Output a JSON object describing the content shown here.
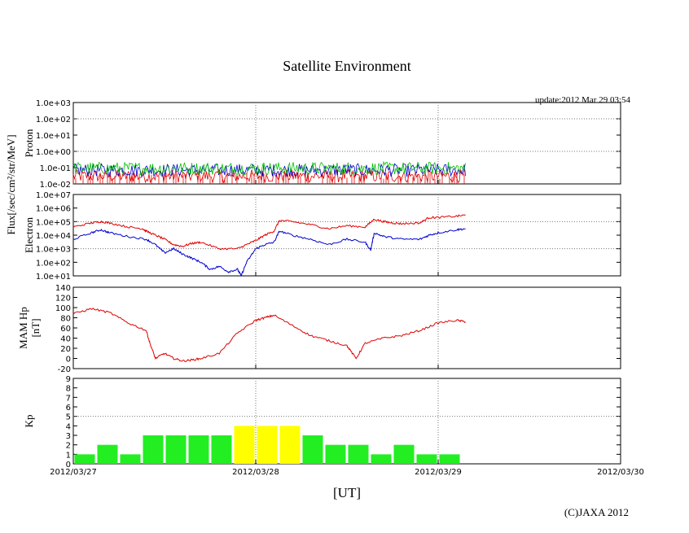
{
  "title": "Satellite Environment",
  "update": "update:2012 Mar 29 03:54",
  "copyright": "(C)JAXA 2012",
  "xlabel": "[UT]",
  "shared_ylabel": "Flux[/sec/cm²/str/MeV]",
  "x_ticks": [
    "2012/03/27",
    "2012/03/28",
    "2012/03/29",
    "2012/03/30"
  ],
  "colors": {
    "red": "#e00000",
    "blue": "#0000cc",
    "green": "#00c000",
    "kp_green": "#22ee22",
    "kp_yellow": "#ffff00"
  },
  "chart_data": [
    {
      "type": "line",
      "name": "proton",
      "ylabel": "Proton",
      "yscale": "log",
      "ylim": [
        0.01,
        1000
      ],
      "y_ticks": [
        "1.0e-02",
        "1.0e-01",
        "1.0e+00",
        "1.0e+01",
        "1.0e+02",
        "1.0e+03"
      ],
      "xlim": [
        0,
        3
      ],
      "note": "noisy fluxes near 0.1, three channels",
      "series": [
        {
          "color": "red",
          "x": [
            0,
            2.15
          ],
          "level": 0.03
        },
        {
          "color": "blue",
          "x": [
            0,
            2.15
          ],
          "level": 0.07
        },
        {
          "color": "green",
          "x": [
            0,
            2.15
          ],
          "level": 0.09
        }
      ]
    },
    {
      "type": "line",
      "name": "electron",
      "ylabel": "Electron",
      "yscale": "log",
      "ylim": [
        10,
        10000000
      ],
      "y_ticks": [
        "1.0e+01",
        "1.0e+02",
        "1.0e+03",
        "1.0e+04",
        "1.0e+05",
        "1.0e+06",
        "1.0e+07"
      ],
      "xlim": [
        0,
        3
      ],
      "series": [
        {
          "color": "red",
          "x": [
            0,
            0.1,
            0.15,
            0.2,
            0.3,
            0.38,
            0.4,
            0.45,
            0.5,
            0.55,
            0.6,
            0.65,
            0.7,
            0.8,
            0.9,
            0.95,
            1.0,
            1.05,
            1.1,
            1.13,
            1.2,
            1.3,
            1.4,
            1.5,
            1.6,
            1.65,
            1.7,
            1.75,
            1.8,
            1.9,
            1.95,
            2.0,
            2.1,
            2.15
          ],
          "y": [
            40000,
            80000,
            100000,
            80000,
            40000,
            30000,
            20000,
            10000,
            5000,
            2000,
            1500,
            2500,
            3000,
            1000,
            1000,
            2000,
            4000,
            10000,
            20000,
            120000,
            100000,
            60000,
            30000,
            50000,
            40000,
            150000,
            100000,
            80000,
            70000,
            80000,
            200000,
            200000,
            250000,
            300000
          ]
        },
        {
          "color": "blue",
          "x": [
            0,
            0.1,
            0.15,
            0.2,
            0.3,
            0.4,
            0.45,
            0.5,
            0.55,
            0.6,
            0.65,
            0.7,
            0.75,
            0.8,
            0.85,
            0.9,
            0.92,
            0.95,
            1.0,
            1.05,
            1.1,
            1.13,
            1.2,
            1.3,
            1.4,
            1.5,
            1.6,
            1.63,
            1.65,
            1.7,
            1.8,
            1.9,
            1.95,
            2.0,
            2.1,
            2.15
          ],
          "y": [
            5000,
            15000,
            25000,
            15000,
            8000,
            5000,
            2000,
            500,
            1000,
            400,
            200,
            100,
            30,
            50,
            20,
            30,
            10,
            100,
            1000,
            2000,
            3000,
            20000,
            10000,
            5000,
            2000,
            5000,
            3000,
            800,
            15000,
            8000,
            5000,
            5000,
            10000,
            15000,
            25000,
            30000
          ]
        }
      ]
    },
    {
      "type": "line",
      "name": "mam-hp",
      "ylabel": "MAM Hp\n[nT]",
      "ylim": [
        -20,
        140
      ],
      "y_ticks": [
        "-20",
        "0",
        "20",
        "40",
        "60",
        "80",
        "100",
        "120",
        "140"
      ],
      "xlim": [
        0,
        3
      ],
      "series": [
        {
          "color": "red",
          "x": [
            0,
            0.1,
            0.2,
            0.3,
            0.4,
            0.42,
            0.45,
            0.5,
            0.55,
            0.6,
            0.65,
            0.7,
            0.8,
            0.9,
            1.0,
            1.05,
            1.1,
            1.2,
            1.3,
            1.4,
            1.5,
            1.55,
            1.6,
            1.7,
            1.8,
            1.9,
            2.0,
            2.1,
            2.15
          ],
          "y": [
            88,
            98,
            90,
            70,
            55,
            30,
            0,
            10,
            0,
            -5,
            -3,
            0,
            10,
            50,
            75,
            80,
            85,
            65,
            45,
            35,
            25,
            0,
            30,
            40,
            45,
            55,
            70,
            75,
            72
          ]
        }
      ]
    },
    {
      "type": "bar",
      "name": "kp",
      "ylabel": "Kp",
      "ylim": [
        0,
        9
      ],
      "y_ticks": [
        "0",
        "1",
        "2",
        "3",
        "4",
        "5",
        "6",
        "7",
        "8",
        "9"
      ],
      "xlim": [
        0,
        3
      ],
      "bar_width_days": 0.125,
      "threshold": 5,
      "values": [
        1,
        2,
        1,
        3,
        3,
        3,
        3,
        4,
        4,
        4,
        3,
        2,
        2,
        1,
        2,
        1,
        1
      ],
      "colors": [
        "kp_green",
        "kp_green",
        "kp_green",
        "kp_green",
        "kp_green",
        "kp_green",
        "kp_green",
        "kp_yellow",
        "kp_yellow",
        "kp_yellow",
        "kp_green",
        "kp_green",
        "kp_green",
        "kp_green",
        "kp_green",
        "kp_green",
        "kp_green"
      ]
    }
  ]
}
